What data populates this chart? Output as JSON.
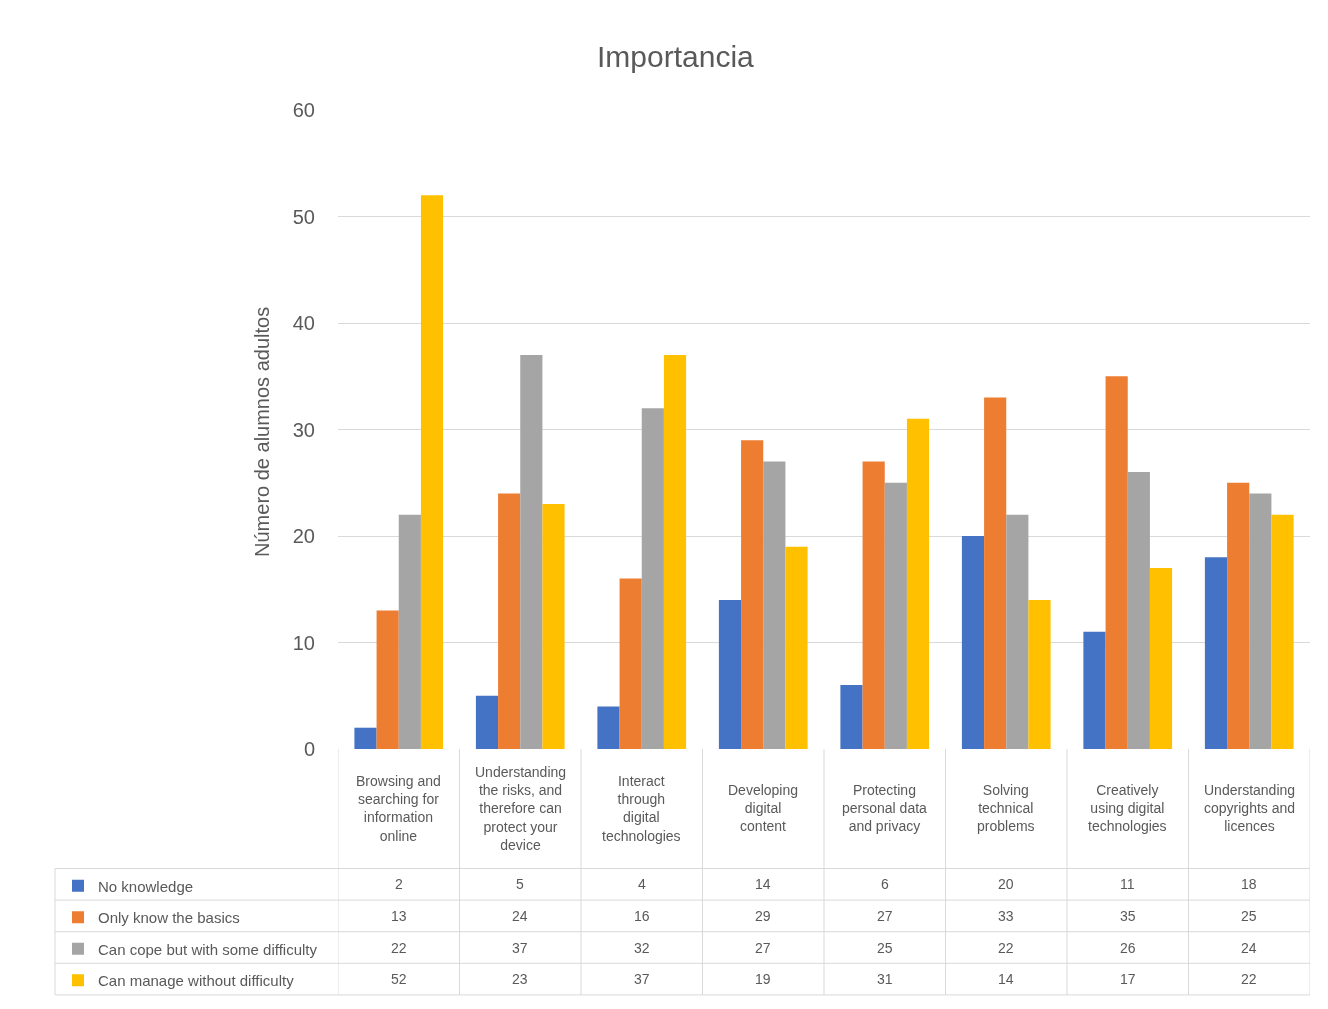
{
  "chart_data": {
    "type": "bar",
    "title": "Importancia",
    "ylabel": "Número de alumnos adultos",
    "categories": [
      "Browsing and searching for information online",
      "Understanding the risks, and therefore can protect your device",
      "Interact through digital technologies",
      "Developing digital content",
      "Protecting personal data and privacy",
      "Solving technical problems",
      "Creatively using digital technologies",
      "Understanding copyrights and licences"
    ],
    "series": [
      {
        "name": "No knowledge",
        "color": "#4472c4",
        "values": [
          2,
          5,
          4,
          14,
          6,
          20,
          11,
          18
        ]
      },
      {
        "name": "Only know the basics",
        "color": "#ed7d31",
        "values": [
          13,
          24,
          16,
          29,
          27,
          33,
          35,
          25
        ]
      },
      {
        "name": "Can cope but with some difficulty",
        "color": "#a5a5a5",
        "values": [
          22,
          37,
          32,
          27,
          25,
          22,
          26,
          24
        ]
      },
      {
        "name": "Can manage without difficulty",
        "color": "#ffc000",
        "values": [
          52,
          23,
          37,
          19,
          31,
          14,
          17,
          22
        ]
      }
    ],
    "ylim": [
      0,
      60
    ],
    "yticks": [
      0,
      10,
      20,
      30,
      40,
      50,
      60
    ],
    "grid": "y",
    "legend": "bottom left",
    "data_labels": true
  }
}
